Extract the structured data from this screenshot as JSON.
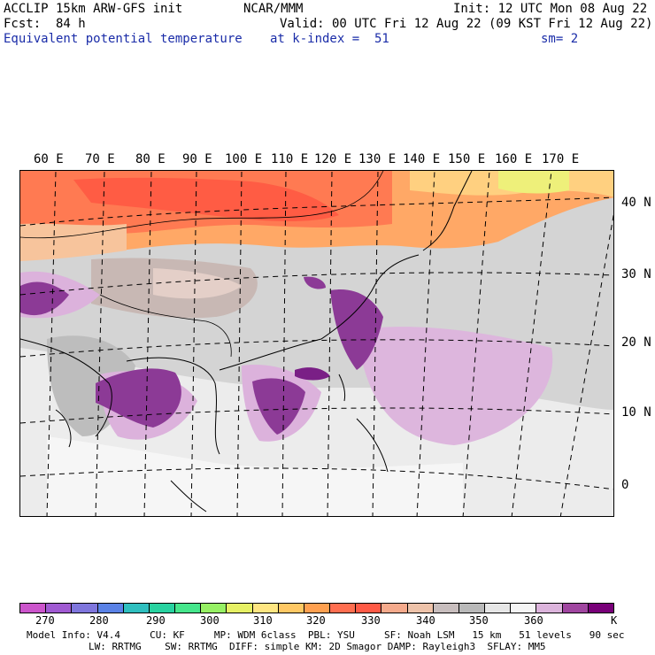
{
  "header": {
    "left_line1": "ACCLIP 15km ARW-GFS init",
    "left_line2": "Fcst:  84 h",
    "left_line3": "Equivalent potential temperature",
    "center_line1": "NCAR/MMM",
    "center_line3": "at k-index =  51",
    "right_line1": "Init: 12 UTC Mon 08 Aug 22",
    "right_line2": "Valid: 00 UTC Fri 12 Aug 22 (09 KST Fri 12 Aug 22)",
    "right_line3": "sm= 2"
  },
  "map": {
    "lon_labels": [
      "60 E",
      "70 E",
      "80 E",
      "90 E",
      "100 E",
      "110 E",
      "120 E",
      "130 E",
      "140 E",
      "150 E",
      "160 E",
      "170 E"
    ],
    "lat_labels": [
      "40 N",
      "30 N",
      "20 N",
      "10 N",
      "0"
    ]
  },
  "colorbar": {
    "colors": [
      "#cc55cc",
      "#a05ad2",
      "#7f76dd",
      "#5a82e6",
      "#2fbfbf",
      "#28d2a0",
      "#46e68c",
      "#96f064",
      "#e6f064",
      "#ffe682",
      "#ffc864",
      "#ffa050",
      "#ff6e50",
      "#ff5a46",
      "#f5aa8c",
      "#eec3aa",
      "#c8bebe",
      "#b9b9b9",
      "#e6e6e6",
      "#f5f5f5",
      "#dcb4dc",
      "#a046a0",
      "#780078"
    ],
    "ticks": [
      "270",
      "280",
      "290",
      "300",
      "310",
      "320",
      "330",
      "340",
      "350",
      "360"
    ],
    "unit": "K"
  },
  "footer": {
    "line1": "Model Info: V4.4     CU: KF     MP: WDM 6class  PBL: YSU     SF: Noah LSM   15 km   51 levels   90 sec",
    "line2": "LW: RRTMG    SW: RRTMG  DIFF: simple KM: 2D Smagor DAMP: Rayleigh3  SFLAY: MM5"
  }
}
